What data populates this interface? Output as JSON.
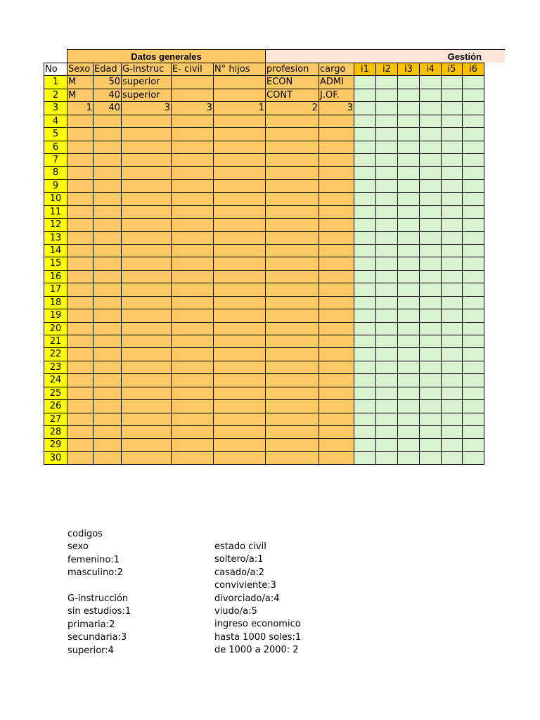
{
  "sheet": {
    "group_headers": [
      "Datos generales",
      "Gestión"
    ],
    "columns": [
      {
        "key": "no",
        "label": "No"
      },
      {
        "key": "sexo",
        "label": "Sexo"
      },
      {
        "key": "edad",
        "label": "Edad"
      },
      {
        "key": "g_instruc",
        "label": "G-Instruc"
      },
      {
        "key": "e_civil",
        "label": "E- civil"
      },
      {
        "key": "n_hijos",
        "label": "N° hijos"
      },
      {
        "key": "profesion",
        "label": "profesion"
      },
      {
        "key": "cargo",
        "label": "cargo"
      },
      {
        "key": "i1",
        "label": "i1"
      },
      {
        "key": "i2",
        "label": "i2"
      },
      {
        "key": "i3",
        "label": "i3"
      },
      {
        "key": "i4",
        "label": "i4"
      },
      {
        "key": "i5",
        "label": "i5"
      },
      {
        "key": "i6",
        "label": "i6"
      }
    ],
    "rows": [
      {
        "no": 1,
        "sexo": "M",
        "edad": 50,
        "g_instruc": "superior",
        "profesion": "ECON",
        "cargo": "ADMI"
      },
      {
        "no": 2,
        "sexo": "M",
        "edad": 40,
        "g_instruc": "superior",
        "profesion": "CONT",
        "cargo": "J.OF."
      },
      {
        "no": 3,
        "sexo": 1,
        "edad": 40,
        "g_instruc": 3,
        "e_civil": 3,
        "n_hijos": 1,
        "profesion": 2,
        "cargo": 3
      },
      {
        "no": 4
      },
      {
        "no": 5
      },
      {
        "no": 6
      },
      {
        "no": 7
      },
      {
        "no": 8
      },
      {
        "no": 9
      },
      {
        "no": 10
      },
      {
        "no": 11
      },
      {
        "no": 12
      },
      {
        "no": 13
      },
      {
        "no": 14
      },
      {
        "no": 15
      },
      {
        "no": 16
      },
      {
        "no": 17
      },
      {
        "no": 18
      },
      {
        "no": 19
      },
      {
        "no": 20
      },
      {
        "no": 21
      },
      {
        "no": 22
      },
      {
        "no": 23
      },
      {
        "no": 24
      },
      {
        "no": 25
      },
      {
        "no": 26
      },
      {
        "no": 27
      },
      {
        "no": 28
      },
      {
        "no": 29
      },
      {
        "no": 30
      }
    ]
  },
  "notes": {
    "left": [
      [
        "codigos",
        "sexo",
        "femenino:1",
        "masculino:2"
      ],
      [
        "G-instrucción",
        "sin estudios:1",
        "primaria:2",
        "secundaria:3",
        "superior:4"
      ]
    ],
    "right": [
      [
        "estado civil",
        "soltero/a:1",
        "casado/a:2",
        "conviviente:3",
        "divorciado/a:4",
        "viudo/a:5",
        "ingreso economico",
        "hasta 1000 soles:1",
        "de 1000 a 2000: 2"
      ]
    ]
  }
}
